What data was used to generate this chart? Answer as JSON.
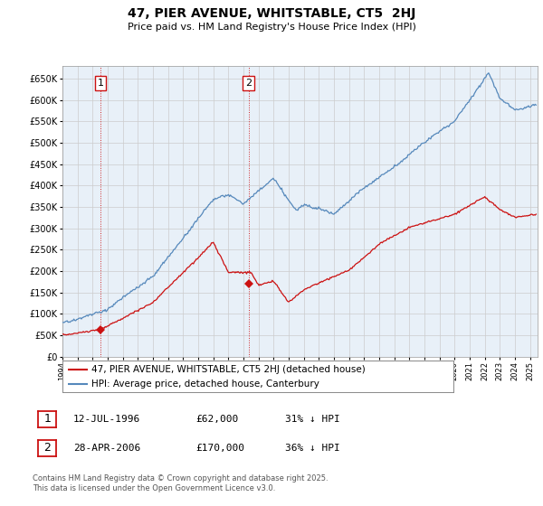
{
  "title": "47, PIER AVENUE, WHITSTABLE, CT5  2HJ",
  "subtitle": "Price paid vs. HM Land Registry's House Price Index (HPI)",
  "ylim": [
    0,
    680000
  ],
  "yticks": [
    0,
    50000,
    100000,
    150000,
    200000,
    250000,
    300000,
    350000,
    400000,
    450000,
    500000,
    550000,
    600000,
    650000
  ],
  "ytick_labels": [
    "£0",
    "£50K",
    "£100K",
    "£150K",
    "£200K",
    "£250K",
    "£300K",
    "£350K",
    "£400K",
    "£450K",
    "£500K",
    "£550K",
    "£600K",
    "£650K"
  ],
  "xlim_start": 1994.0,
  "xlim_end": 2025.5,
  "hpi_color": "#5588bb",
  "price_color": "#cc1111",
  "chart_bg": "#e8f0f8",
  "purchase1_x": 1996.53,
  "purchase1_y": 62000,
  "purchase2_x": 2006.33,
  "purchase2_y": 170000,
  "legend_line1": "47, PIER AVENUE, WHITSTABLE, CT5 2HJ (detached house)",
  "legend_line2": "HPI: Average price, detached house, Canterbury",
  "footer": "Contains HM Land Registry data © Crown copyright and database right 2025.\nThis data is licensed under the Open Government Licence v3.0.",
  "background_color": "#ffffff",
  "grid_color": "#cccccc"
}
